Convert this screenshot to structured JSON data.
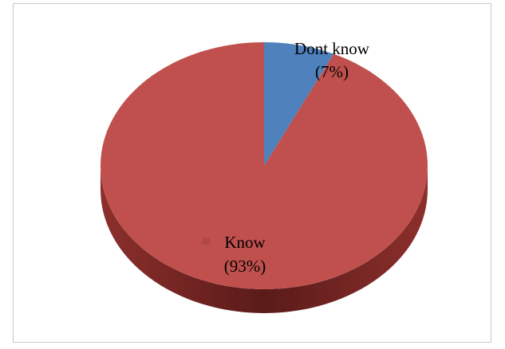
{
  "chart_data": {
    "type": "pie",
    "style": "3d",
    "title": "",
    "legend": "none",
    "slices": [
      {
        "label": "Dont know",
        "value": 7,
        "value_label": "(7%)",
        "color": "#4f81bd",
        "side_color": "#385d8a"
      },
      {
        "label": "Know",
        "value": 93,
        "value_label": "(93%)",
        "color": "#c0504d",
        "side_color": "#7a2826"
      }
    ]
  }
}
